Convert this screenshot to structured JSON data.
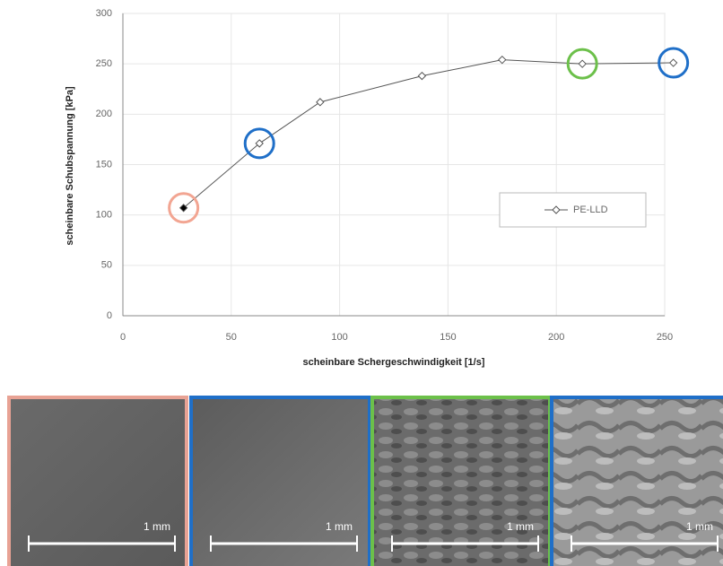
{
  "chart_data": {
    "type": "line",
    "x_label": "scheinbare Schergeschwindigkeit [1/s]",
    "y_label": "scheinbare Schubspannung [kPa]",
    "x": [
      28,
      63,
      91,
      138,
      175,
      212,
      254
    ],
    "series": [
      {
        "name": "PE-LLD",
        "color": "#555555",
        "values": [
          107,
          171,
          212,
          238,
          254,
          250,
          251
        ],
        "marker_fill": [
          "#000000",
          null,
          null,
          null,
          null,
          null,
          null
        ],
        "highlight_colors": [
          "#f2a592",
          "#1f6fc8",
          null,
          null,
          null,
          "#6cc04a",
          "#1f6fc8"
        ]
      }
    ],
    "xlim": [
      0,
      250
    ],
    "xticks": [
      0,
      50,
      100,
      150,
      200,
      250
    ],
    "ylim": [
      0,
      300
    ],
    "yticks": [
      0,
      50,
      100,
      150,
      200,
      250,
      300
    ],
    "grid": true,
    "legend": "right"
  },
  "images": [
    {
      "border": "#e8a294",
      "scale_label": "1 mm"
    },
    {
      "border": "#1f6fc8",
      "scale_label": "1 mm"
    },
    {
      "border": "#6cc04a",
      "scale_label": "1 mm"
    },
    {
      "border": "#1f6fc8",
      "scale_label": "1 mm"
    }
  ]
}
